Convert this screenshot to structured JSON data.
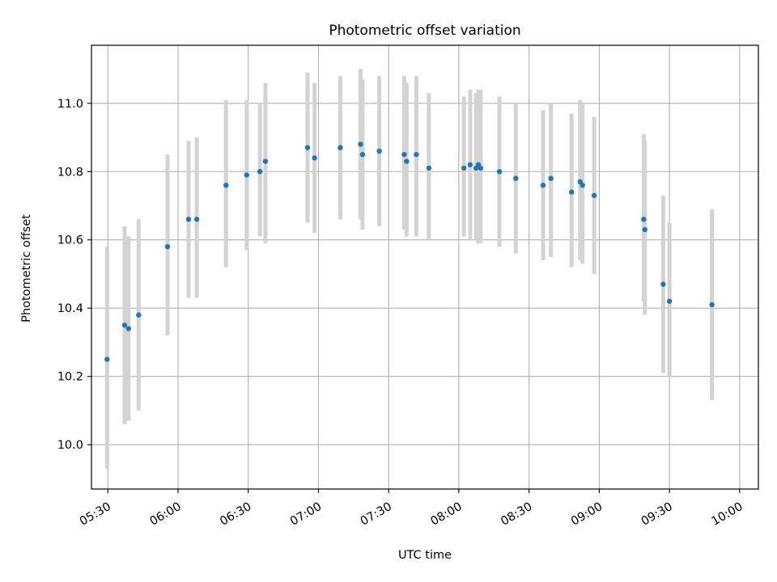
{
  "chart_data": {
    "type": "scatter",
    "title": "Photometric offset variation",
    "xlabel": "UTC time",
    "ylabel": "Photometric offset",
    "xlim": [
      "05:23",
      "10:08"
    ],
    "ylim": [
      9.87,
      11.17
    ],
    "grid": true,
    "x_ticks": [
      "05:30",
      "06:00",
      "06:30",
      "07:00",
      "07:30",
      "08:00",
      "08:30",
      "09:00",
      "09:30",
      "10:00"
    ],
    "y_ticks": [
      10.0,
      10.2,
      10.4,
      10.6,
      10.8,
      11.0
    ],
    "colors": {
      "point": "#1f77b4",
      "error_bar": "#d3d3d3",
      "grid": "#b0b0b0"
    },
    "points": [
      {
        "time": "05:29:40",
        "y": 10.25,
        "y_err_low": 9.93,
        "y_err_high": 10.58
      },
      {
        "time": "05:37:10",
        "y": 10.35,
        "y_err_low": 10.06,
        "y_err_high": 10.64
      },
      {
        "time": "05:38:50",
        "y": 10.34,
        "y_err_low": 10.07,
        "y_err_high": 10.61
      },
      {
        "time": "05:43:10",
        "y": 10.38,
        "y_err_low": 10.1,
        "y_err_high": 10.66
      },
      {
        "time": "05:55:30",
        "y": 10.58,
        "y_err_low": 10.32,
        "y_err_high": 10.85
      },
      {
        "time": "06:04:30",
        "y": 10.66,
        "y_err_low": 10.43,
        "y_err_high": 10.89
      },
      {
        "time": "06:08:00",
        "y": 10.66,
        "y_err_low": 10.43,
        "y_err_high": 10.9
      },
      {
        "time": "06:20:30",
        "y": 10.76,
        "y_err_low": 10.52,
        "y_err_high": 11.01
      },
      {
        "time": "06:29:20",
        "y": 10.79,
        "y_err_low": 10.57,
        "y_err_high": 11.01
      },
      {
        "time": "06:35:00",
        "y": 10.8,
        "y_err_low": 10.61,
        "y_err_high": 11.0
      },
      {
        "time": "06:37:20",
        "y": 10.83,
        "y_err_low": 10.59,
        "y_err_high": 11.06
      },
      {
        "time": "06:55:20",
        "y": 10.87,
        "y_err_low": 10.65,
        "y_err_high": 11.09
      },
      {
        "time": "06:58:20",
        "y": 10.84,
        "y_err_low": 10.62,
        "y_err_high": 11.06
      },
      {
        "time": "07:09:20",
        "y": 10.87,
        "y_err_low": 10.66,
        "y_err_high": 11.08
      },
      {
        "time": "07:18:00",
        "y": 10.88,
        "y_err_low": 10.66,
        "y_err_high": 11.1
      },
      {
        "time": "07:18:50",
        "y": 10.85,
        "y_err_low": 10.63,
        "y_err_high": 11.07
      },
      {
        "time": "07:26:00",
        "y": 10.86,
        "y_err_low": 10.64,
        "y_err_high": 11.08
      },
      {
        "time": "07:36:40",
        "y": 10.85,
        "y_err_low": 10.63,
        "y_err_high": 11.08
      },
      {
        "time": "07:37:40",
        "y": 10.83,
        "y_err_low": 10.61,
        "y_err_high": 11.06
      },
      {
        "time": "07:41:50",
        "y": 10.85,
        "y_err_low": 10.61,
        "y_err_high": 11.08
      },
      {
        "time": "07:47:10",
        "y": 10.81,
        "y_err_low": 10.6,
        "y_err_high": 11.03
      },
      {
        "time": "08:02:10",
        "y": 10.81,
        "y_err_low": 10.61,
        "y_err_high": 11.02
      },
      {
        "time": "08:04:50",
        "y": 10.82,
        "y_err_low": 10.6,
        "y_err_high": 11.04
      },
      {
        "time": "08:07:20",
        "y": 10.81,
        "y_err_low": 10.6,
        "y_err_high": 11.03
      },
      {
        "time": "08:08:20",
        "y": 10.82,
        "y_err_low": 10.59,
        "y_err_high": 11.04
      },
      {
        "time": "08:09:20",
        "y": 10.81,
        "y_err_low": 10.59,
        "y_err_high": 11.04
      },
      {
        "time": "08:17:20",
        "y": 10.8,
        "y_err_low": 10.58,
        "y_err_high": 11.02
      },
      {
        "time": "08:24:20",
        "y": 10.78,
        "y_err_low": 10.56,
        "y_err_high": 11.0
      },
      {
        "time": "08:36:00",
        "y": 10.76,
        "y_err_low": 10.54,
        "y_err_high": 10.98
      },
      {
        "time": "08:39:20",
        "y": 10.78,
        "y_err_low": 10.55,
        "y_err_high": 11.0
      },
      {
        "time": "08:48:10",
        "y": 10.74,
        "y_err_low": 10.52,
        "y_err_high": 10.97
      },
      {
        "time": "08:51:50",
        "y": 10.77,
        "y_err_low": 10.54,
        "y_err_high": 11.01
      },
      {
        "time": "08:52:50",
        "y": 10.76,
        "y_err_low": 10.53,
        "y_err_high": 11.0
      },
      {
        "time": "08:57:50",
        "y": 10.73,
        "y_err_low": 10.5,
        "y_err_high": 10.96
      },
      {
        "time": "09:19:00",
        "y": 10.66,
        "y_err_low": 10.42,
        "y_err_high": 10.91
      },
      {
        "time": "09:19:30",
        "y": 10.63,
        "y_err_low": 10.38,
        "y_err_high": 10.89
      },
      {
        "time": "09:27:20",
        "y": 10.47,
        "y_err_low": 10.21,
        "y_err_high": 10.73
      },
      {
        "time": "09:30:00",
        "y": 10.42,
        "y_err_low": 10.2,
        "y_err_high": 10.65
      },
      {
        "time": "09:48:10",
        "y": 10.41,
        "y_err_low": 10.13,
        "y_err_high": 10.69
      }
    ]
  }
}
